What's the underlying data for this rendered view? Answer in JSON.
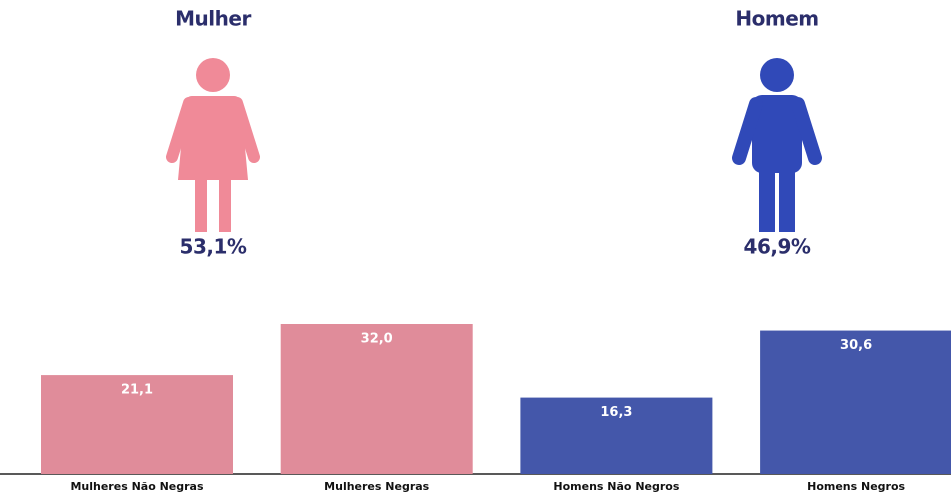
{
  "figures": [
    {
      "label": "Mulher",
      "value": 53.1,
      "value_label": "53,1%",
      "color": "#f08a98"
    },
    {
      "label": "Homem",
      "value": 46.9,
      "value_label": "46,9%",
      "color": "#3049b8"
    }
  ],
  "chart_data": {
    "type": "bar",
    "categories": [
      "Mulheres Não Negras",
      "Mulheres Negras",
      "Homens Não Negros",
      "Homens Negros"
    ],
    "values": [
      21.1,
      32.0,
      16.3,
      30.6
    ],
    "value_labels": [
      "21,1",
      "32,0",
      "16,3",
      "30,6"
    ],
    "colors": [
      "#e08c9a",
      "#e08c9a",
      "#4457aa",
      "#4457aa"
    ]
  }
}
